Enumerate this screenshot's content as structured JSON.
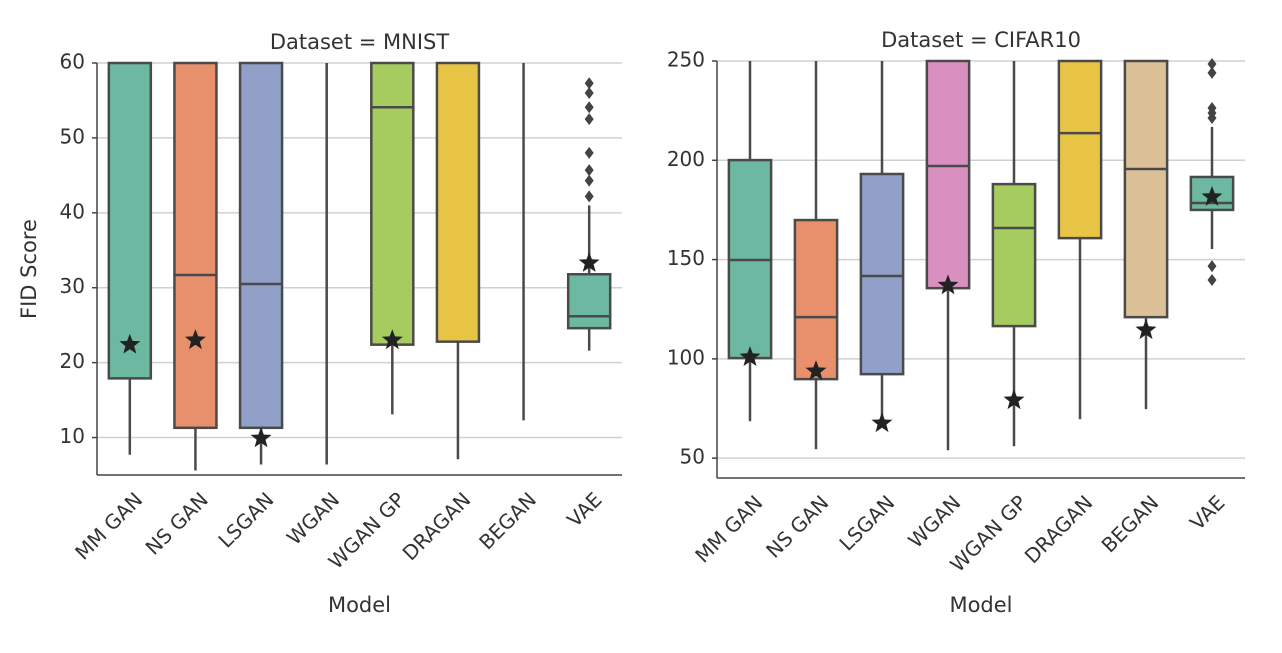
{
  "chart_data": [
    {
      "type": "box",
      "title": "Dataset = MNIST",
      "xlabel": "Model",
      "ylabel": "FID Score",
      "categories": [
        "MM GAN",
        "NS GAN",
        "LSGAN",
        "WGAN",
        "WGAN GP",
        "DRAGAN",
        "BEGAN",
        "VAE"
      ],
      "colors": [
        "#6db8a0",
        "#e8906c",
        "#90a0c8",
        null,
        "#a6cc5f",
        "#e8c444",
        null,
        "#6db8a0"
      ],
      "whislo": [
        7.7,
        5.6,
        6.4,
        6.4,
        13.1,
        7.1,
        12.3,
        21.6
      ],
      "q1": [
        17.9,
        11.3,
        11.3,
        null,
        22.4,
        22.8,
        null,
        24.6
      ],
      "median": [
        null,
        31.7,
        30.5,
        null,
        54.1,
        null,
        null,
        26.2
      ],
      "q3": [
        null,
        null,
        null,
        null,
        null,
        null,
        null,
        31.8
      ],
      "whishi": [
        null,
        null,
        null,
        null,
        null,
        null,
        null,
        41.0
      ],
      "fliers": [
        [],
        [],
        [],
        [],
        [],
        [],
        [],
        [
          57.3,
          56.0,
          54.1,
          52.5,
          48.0,
          45.7,
          44.3,
          42.2
        ]
      ],
      "stars": [
        22.4,
        23.0,
        9.9,
        null,
        23.0,
        null,
        null,
        33.3
      ],
      "ylim": [
        5,
        60
      ],
      "yticks": [
        10,
        20,
        30,
        40,
        50,
        60
      ],
      "grid": true
    },
    {
      "type": "box",
      "title": "Dataset = CIFAR10",
      "xlabel": "Model",
      "categories": [
        "MM GAN",
        "NS GAN",
        "LSGAN",
        "WGAN",
        "WGAN GP",
        "DRAGAN",
        "BEGAN",
        "VAE"
      ],
      "colors": [
        "#6db8a0",
        "#e8906c",
        "#90a0c8",
        "#d990c0",
        "#a6cc5f",
        "#e8c444",
        "#dcc097",
        "#6db8a0"
      ],
      "whislo": [
        68.6,
        54.5,
        65.6,
        54.0,
        56.0,
        69.6,
        74.7,
        155.3
      ],
      "q1": [
        100.4,
        89.8,
        92.3,
        135.6,
        116.5,
        160.8,
        121.0,
        175.0
      ],
      "median": [
        149.8,
        121.0,
        141.7,
        197.1,
        165.9,
        213.7,
        195.6,
        178.5
      ],
      "q3": [
        200.1,
        169.9,
        193.1,
        null,
        188.0,
        null,
        null,
        191.6
      ],
      "whishi": [
        null,
        null,
        null,
        null,
        null,
        null,
        null,
        216.8
      ],
      "fliers": [
        [],
        [],
        [],
        [],
        [],
        [],
        [],
        [
          248.5,
          244.0,
          226.3,
          223.8,
          221.3,
          146.7,
          139.7
        ]
      ],
      "stars": [
        100.9,
        93.8,
        67.6,
        137.0,
        79.2,
        null,
        114.5,
        181.5
      ],
      "ylim": [
        40,
        250
      ],
      "yticks": [
        50,
        100,
        150,
        200,
        250
      ],
      "grid": true
    }
  ]
}
